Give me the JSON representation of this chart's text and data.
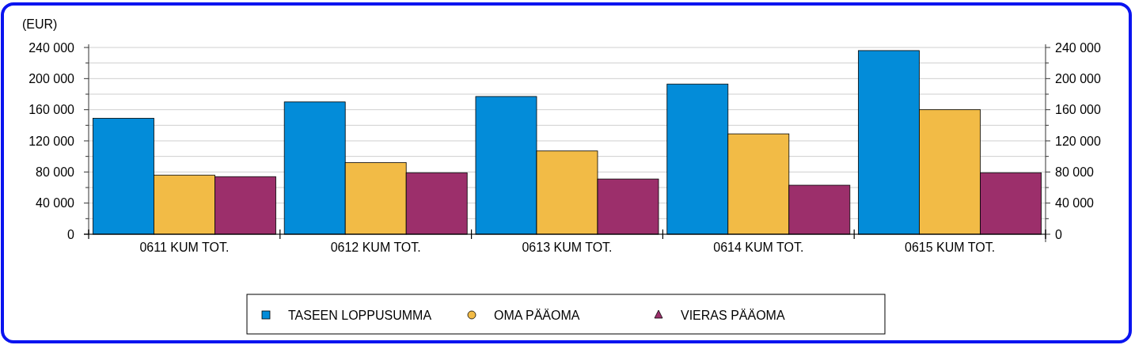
{
  "chart_data": {
    "type": "bar",
    "ylabel": "(EUR)",
    "categories": [
      "0611 KUM TOT.",
      "0612 KUM TOT.",
      "0613 KUM TOT.",
      "0614 KUM TOT.",
      "0615 KUM TOT."
    ],
    "series": [
      {
        "name": "TASEEN LOPPUSUMMA",
        "color": "#038cd9",
        "marker": "square",
        "values": [
          149000,
          170000,
          177000,
          193000,
          236000
        ]
      },
      {
        "name": "OMA PÄÄOMA",
        "color": "#f2bb46",
        "marker": "circle",
        "values": [
          76000,
          92000,
          107000,
          129000,
          160000
        ]
      },
      {
        "name": "VIERAS PÄÄOMA",
        "color": "#9c2f6b",
        "marker": "triangle",
        "values": [
          74000,
          79000,
          71000,
          63000,
          79000
        ]
      }
    ],
    "ylim": [
      0,
      240000
    ],
    "yticks": [
      {
        "value": 0,
        "label": "0"
      },
      {
        "value": 20000,
        "label": null
      },
      {
        "value": 40000,
        "label": "40 000"
      },
      {
        "value": 60000,
        "label": null
      },
      {
        "value": 80000,
        "label": "80 000"
      },
      {
        "value": 100000,
        "label": null
      },
      {
        "value": 120000,
        "label": "120 000"
      },
      {
        "value": 140000,
        "label": null
      },
      {
        "value": 160000,
        "label": "160 000"
      },
      {
        "value": 180000,
        "label": null
      },
      {
        "value": 200000,
        "label": "200 000"
      },
      {
        "value": 220000,
        "label": null
      },
      {
        "value": 240000,
        "label": "240 000"
      }
    ],
    "y2lim": [
      0,
      240000
    ],
    "y2ticks": [
      {
        "value": 0,
        "label": "0"
      },
      {
        "value": 20000,
        "label": null
      },
      {
        "value": 40000,
        "label": "40 000"
      },
      {
        "value": 60000,
        "label": null
      },
      {
        "value": 80000,
        "label": "80 000"
      },
      {
        "value": 100000,
        "label": null
      },
      {
        "value": 120000,
        "label": "120 000"
      },
      {
        "value": 140000,
        "label": null
      },
      {
        "value": 160000,
        "label": "160 000"
      },
      {
        "value": 180000,
        "label": null
      },
      {
        "value": 200000,
        "label": "200 000"
      },
      {
        "value": 220000,
        "label": null
      },
      {
        "value": 240000,
        "label": "240 000"
      }
    ],
    "grid": "y",
    "legend": "bottom"
  }
}
